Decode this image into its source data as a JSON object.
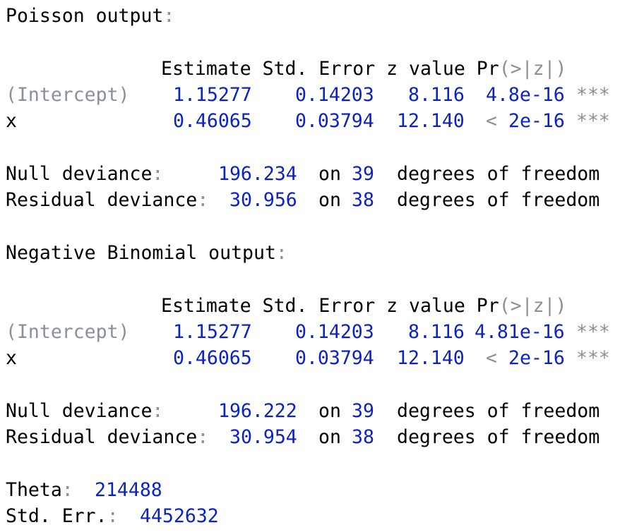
{
  "poisson": {
    "title": "Poisson output",
    "header": {
      "estimate": "Estimate",
      "std_error": "Std. Error",
      "z_value": "z value",
      "pr_prefix": "Pr",
      "pr_args": "(>|z|)"
    },
    "rows": [
      {
        "name": "(Intercept)",
        "estimate": "1.15277",
        "std_error": "0.14203",
        "z_value": "8.116",
        "p_value": "4.8e-16",
        "stars": "***"
      },
      {
        "name": "x",
        "estimate": "0.46065",
        "std_error": "0.03794",
        "z_value": "12.140",
        "p_lt": "<",
        "p_value": "2e-16",
        "stars": "***"
      }
    ],
    "null_deviance": {
      "label": "Null deviance",
      "value": "196.234",
      "on": "on",
      "df": "39",
      "suffix": "degrees of freedom"
    },
    "residual_deviance": {
      "label": "Residual deviance",
      "value": "30.956",
      "on": "on",
      "df": "38",
      "suffix": "degrees of freedom"
    }
  },
  "negbin": {
    "title": "Negative Binomial output",
    "header": {
      "estimate": "Estimate",
      "std_error": "Std. Error",
      "z_value": "z value",
      "pr_prefix": "Pr",
      "pr_args": "(>|z|)"
    },
    "rows": [
      {
        "name": "(Intercept)",
        "estimate": "1.15277",
        "std_error": "0.14203",
        "z_value": "8.116",
        "p_value": "4.81e-16",
        "stars": "***"
      },
      {
        "name": "x",
        "estimate": "0.46065",
        "std_error": "0.03794",
        "z_value": "12.140",
        "p_lt": "<",
        "p_value": "2e-16",
        "stars": "***"
      }
    ],
    "null_deviance": {
      "label": "Null deviance",
      "value": "196.222",
      "on": "on",
      "df": "39",
      "suffix": "degrees of freedom"
    },
    "residual_deviance": {
      "label": "Residual deviance",
      "value": "30.954",
      "on": "on",
      "df": "38",
      "suffix": "degrees of freedom"
    },
    "theta": {
      "label": "Theta",
      "value": "214488"
    },
    "std_err": {
      "label": "Std. Err.",
      "value": "4452632"
    }
  },
  "colors": {
    "number": "#0b22c4",
    "punctuation": "#8a8f99",
    "text": "#000000"
  }
}
